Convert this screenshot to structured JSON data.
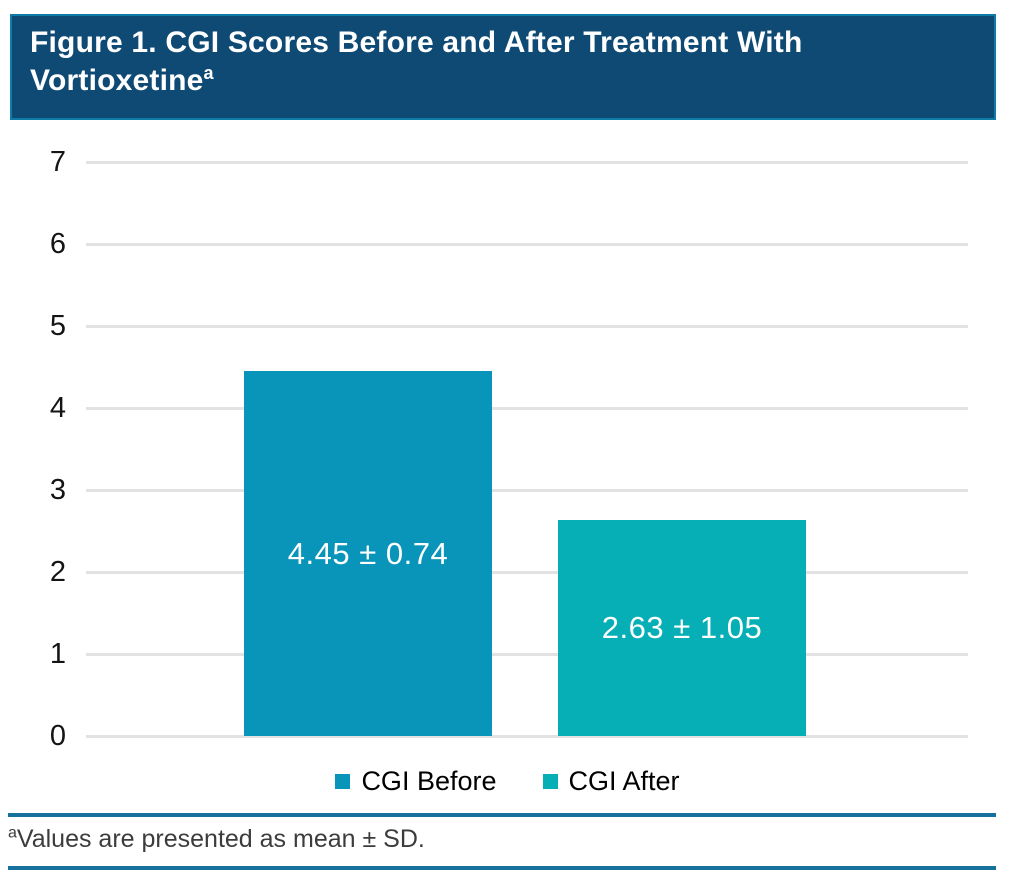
{
  "header": {
    "title": "Figure 1. CGI Scores Before and After Treatment With Vortioxetine",
    "title_footnote_marker": "a"
  },
  "chart_data": {
    "type": "bar",
    "title": "Figure 1. CGI Scores Before and After Treatment With Vortioxetine (a)",
    "categories": [
      "CGI Before",
      "CGI After"
    ],
    "values": [
      4.45,
      2.63
    ],
    "sd": [
      0.74,
      1.05
    ],
    "bar_labels": [
      "4.45 ± 0.74",
      "2.63 ± 1.05"
    ],
    "colors": [
      "#0995BA",
      "#06AEB6"
    ],
    "xlabel": "",
    "ylabel": "",
    "ylim": [
      0,
      7
    ],
    "yticks": [
      0,
      1,
      2,
      3,
      4,
      5,
      6,
      7
    ],
    "grid": true,
    "legend_position": "bottom"
  },
  "footnote": {
    "marker": "a",
    "text": "Values are presented as mean ± SD."
  },
  "colors": {
    "banner_background": "#0F4A74",
    "banner_border": "#0E7CA6",
    "bar_before": "#0995BA",
    "bar_after": "#06AEB6",
    "gridline": "#E2E2E2",
    "footnote_rule": "#16719C",
    "bar_value_text": "#FFFFFF",
    "title_text": "#FFFFFF"
  }
}
